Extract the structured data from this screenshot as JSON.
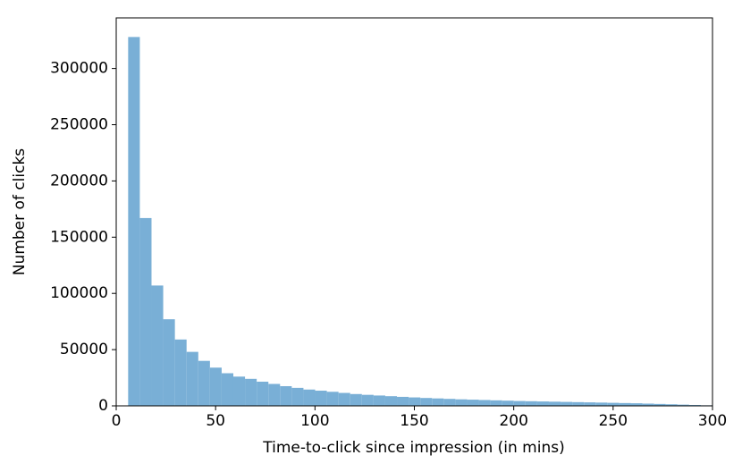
{
  "chart_data": {
    "type": "histogram",
    "xlabel": "Time-to-click since impression (in mins)",
    "ylabel": "Number of clicks",
    "color": "#79afd6",
    "bins": [
      6,
      11.88,
      17.76,
      23.64,
      29.52,
      35.4,
      41.28,
      47.16,
      53.04,
      58.92,
      64.8,
      70.68,
      76.56,
      82.44,
      88.32,
      94.2,
      100.08,
      105.96,
      111.84,
      117.72,
      123.6,
      129.48,
      135.36,
      141.24,
      147.12,
      153,
      158.88,
      164.76,
      170.64,
      176.52,
      182.4,
      188.28,
      194.16,
      200.04,
      205.92,
      211.8,
      217.68,
      223.56,
      229.44,
      235.32,
      241.2,
      247.08,
      252.96,
      258.84,
      264.72,
      270.6,
      276.48,
      282.36,
      288.24,
      294.12,
      300
    ],
    "values": [
      328000,
      167000,
      107000,
      77000,
      59000,
      48000,
      40000,
      34000,
      29000,
      26000,
      24000,
      21500,
      19500,
      17500,
      16000,
      14500,
      13500,
      12500,
      11500,
      10500,
      9800,
      9200,
      8600,
      8000,
      7500,
      7000,
      6600,
      6200,
      5800,
      5500,
      5200,
      4900,
      4600,
      4300,
      4100,
      3900,
      3700,
      3500,
      3300,
      3100,
      2900,
      2700,
      2500,
      2300,
      2000,
      1700,
      1400,
      1100,
      800,
      500
    ],
    "xlim": [
      0,
      300
    ],
    "xticks": [
      0,
      50,
      100,
      150,
      200,
      250,
      300
    ],
    "ylim": [
      0,
      345000
    ],
    "yticks": [
      0,
      50000,
      100000,
      150000,
      200000,
      250000,
      300000
    ]
  }
}
